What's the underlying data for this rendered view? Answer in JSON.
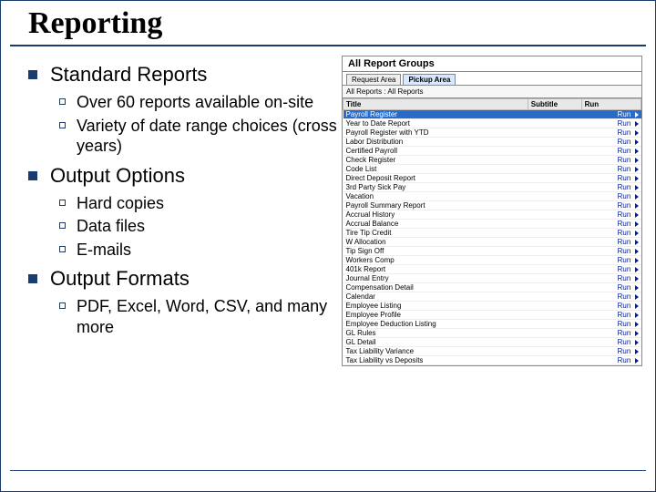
{
  "title": "Reporting",
  "sections": [
    {
      "heading": "Standard Reports",
      "items": [
        "Over 60 reports available on-site",
        "Variety of date range choices (cross years)"
      ]
    },
    {
      "heading": "Output Options",
      "items": [
        "Hard copies",
        "Data files",
        "E-mails"
      ]
    },
    {
      "heading": "Output Formats",
      "items": [
        "PDF, Excel, Word, CSV, and many more"
      ]
    }
  ],
  "screenshot": {
    "window_title": "All Report Groups",
    "tabs": [
      "Request Area",
      "Pickup Area"
    ],
    "active_tab_index": 1,
    "breadcrumb": "All Reports : All Reports",
    "columns": [
      "Title",
      "Subtitle",
      "Run"
    ],
    "run_label": "Run",
    "highlight_index": 0,
    "rows": [
      "Payroll Register",
      "Year to Date Report",
      "Payroll Register with YTD",
      "Labor Distribution",
      "Certified Payroll",
      "Check Register",
      "Code List",
      "Direct Deposit Report",
      "3rd Party Sick Pay",
      "Vacation",
      "Payroll Summary Report",
      "Accrual History",
      "Accrual Balance",
      "Tire Tip Credit",
      "W Allocation",
      "Tip Sign Off",
      "Workers Comp",
      "401k Report",
      "Journal Entry",
      "Compensation Detail",
      "Calendar",
      "Employee Listing",
      "Employee Profile",
      "Employee Deduction Listing",
      "GL Rules",
      "GL Detail",
      "Tax Liability Variance",
      "Tax Liability vs Deposits"
    ]
  },
  "colors": {
    "accent": "#1a3d6e",
    "row_highlight": "#2a6ac8",
    "link": "#0020a0"
  }
}
